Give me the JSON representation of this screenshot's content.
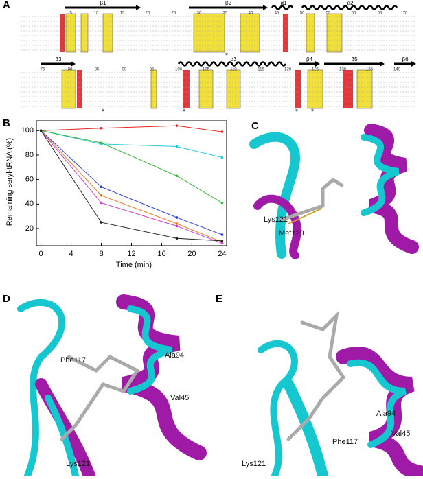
{
  "panels": [
    "A",
    "B",
    "C",
    "D",
    "E"
  ],
  "alignment": {
    "row1": {
      "structures": [
        "β1",
        "β2",
        "α1",
        "α2"
      ],
      "positions": [
        5,
        10,
        15,
        20,
        25,
        30,
        35,
        40,
        45,
        50,
        55,
        60,
        65,
        70
      ],
      "markers": [
        "*"
      ]
    },
    "row2": {
      "structures": [
        "β3",
        "α3",
        "β4",
        "β5",
        "β6"
      ],
      "positions": [
        75,
        80,
        85,
        90,
        95,
        100,
        105,
        110,
        115,
        120,
        125,
        130,
        135,
        140
      ],
      "markers": [
        "*",
        "*",
        "*",
        "*"
      ]
    }
  },
  "chart_data": {
    "type": "line",
    "x_label": "Time (min)",
    "y_label": "Remaining seryl-tRNA (%)",
    "x": [
      0,
      8,
      18,
      24
    ],
    "series": [
      {
        "color": "#e8221c",
        "values": [
          100,
          102,
          104,
          99
        ]
      },
      {
        "color": "#27c9d6",
        "values": [
          100,
          89,
          87,
          78
        ]
      },
      {
        "color": "#3cb43c",
        "values": [
          100,
          90,
          63,
          41
        ]
      },
      {
        "color": "#2a3fd0",
        "values": [
          100,
          54,
          29,
          15
        ]
      },
      {
        "color": "#f07a1a",
        "values": [
          100,
          47,
          24,
          9
        ]
      },
      {
        "color": "#c63fc6",
        "values": [
          100,
          41,
          22,
          8
        ]
      },
      {
        "color": "#222222",
        "values": [
          100,
          25,
          12,
          10
        ]
      }
    ],
    "xlim": [
      -0.6,
      24.6
    ],
    "ylim": [
      6,
      108
    ],
    "xticks": [
      0,
      4,
      8,
      12,
      16,
      20,
      24
    ],
    "yticks": [
      20,
      40,
      60,
      80,
      100
    ],
    "grid": false
  },
  "structures": {
    "C": {
      "labels": [
        "Lys121",
        "Met129"
      ]
    },
    "D": {
      "labels": [
        "Phe117",
        "Ala94",
        "Val45",
        "Lys121"
      ]
    },
    "E": {
      "labels": [
        "Ala94",
        "Phe117",
        "Val45",
        "Lys121"
      ]
    }
  }
}
